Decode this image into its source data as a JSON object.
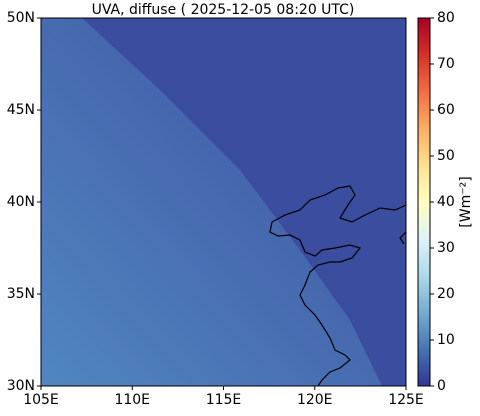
{
  "chart_data": {
    "type": "map",
    "title": "UVA, diffuse ( 2025-12-05 08:20 UTC)",
    "xlim": [
      105,
      125
    ],
    "xticks": [
      {
        "value": 105,
        "label": "105E"
      },
      {
        "value": 110,
        "label": "110E"
      },
      {
        "value": 115,
        "label": "115E"
      },
      {
        "value": 120,
        "label": "120E"
      },
      {
        "value": 125,
        "label": "125E"
      }
    ],
    "ylim": [
      30,
      50
    ],
    "yticks": [
      {
        "value": 30,
        "label": "30N"
      },
      {
        "value": 35,
        "label": "35N"
      },
      {
        "value": 40,
        "label": "40N"
      },
      {
        "value": 45,
        "label": "45N"
      },
      {
        "value": 50,
        "label": "50N"
      }
    ],
    "colorbar": {
      "label": "[Wm⁻²]",
      "lim": [
        0,
        80
      ],
      "ticks": [
        0,
        10,
        20,
        30,
        40,
        50,
        60,
        70,
        80
      ]
    }
  }
}
